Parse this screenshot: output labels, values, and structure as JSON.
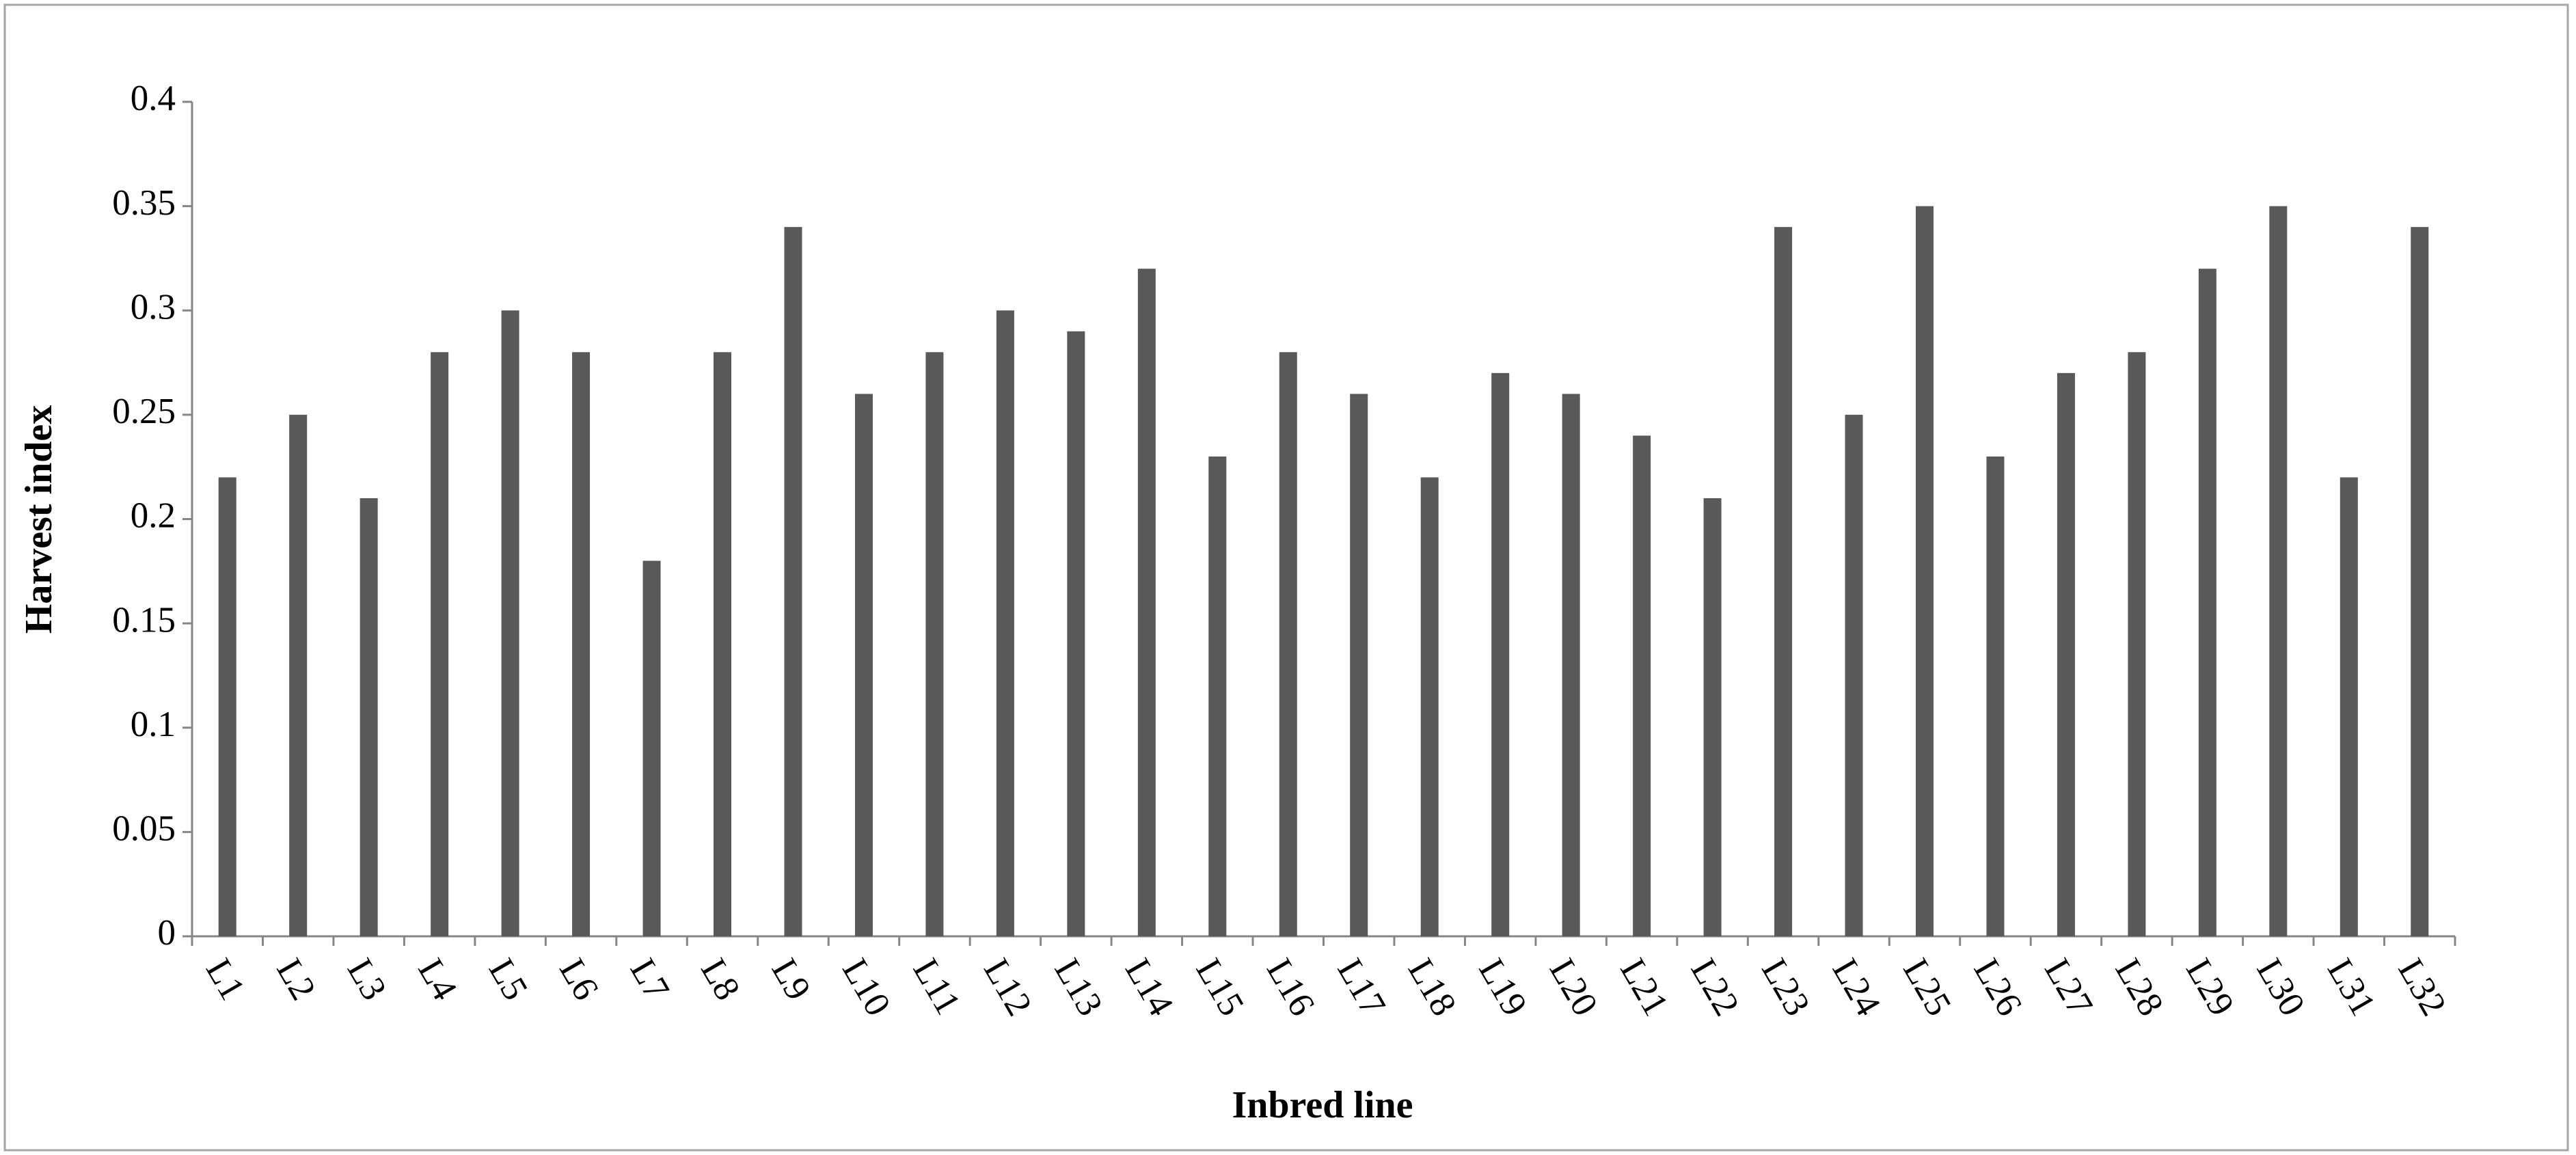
{
  "chart_data": {
    "type": "bar",
    "x_label": "Inbred line",
    "y_label": "Harvest index",
    "categories": [
      "L1",
      "L2",
      "L3",
      "L4",
      "L5",
      "L6",
      "L7",
      "L8",
      "L9",
      "L10",
      "L11",
      "L12",
      "L13",
      "L14",
      "L15",
      "L16",
      "L17",
      "L18",
      "L19",
      "L20",
      "L21",
      "L22",
      "L23",
      "L24",
      "L25",
      "L26",
      "L27",
      "L28",
      "L29",
      "L30",
      "L31",
      "L32"
    ],
    "values": [
      0.22,
      0.25,
      0.21,
      0.28,
      0.3,
      0.28,
      0.18,
      0.28,
      0.34,
      0.26,
      0.28,
      0.3,
      0.29,
      0.32,
      0.23,
      0.28,
      0.26,
      0.22,
      0.27,
      0.26,
      0.24,
      0.21,
      0.34,
      0.25,
      0.35,
      0.23,
      0.27,
      0.28,
      0.32,
      0.35,
      0.22,
      0.34
    ],
    "color": "#595959",
    "ylim": [
      0,
      0.4
    ],
    "yticks": [
      0,
      0.05,
      0.1,
      0.15,
      0.2,
      0.25,
      0.3,
      0.35,
      0.4
    ],
    "grid": false
  }
}
